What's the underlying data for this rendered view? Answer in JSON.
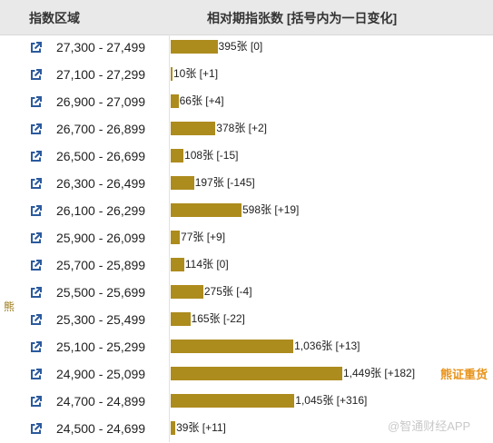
{
  "header": {
    "range_label": "指数区域",
    "bar_label": "相对期指张数 [括号内为一日变化]"
  },
  "side_label": "熊",
  "side_note": "熊证重货",
  "watermark": "@智通财经APP",
  "colors": {
    "bar": "#ad8c1e",
    "header_bg": "#e9e9e9",
    "note": "#e8931a"
  },
  "icon": "external-link-icon",
  "chart_data": {
    "type": "bar",
    "orientation": "horizontal",
    "categories": [
      "27,300 - 27,499",
      "27,100 - 27,299",
      "26,900 - 27,099",
      "26,700 - 26,899",
      "26,500 - 26,699",
      "26,300 - 26,499",
      "26,100 - 26,299",
      "25,900 - 26,099",
      "25,700 - 25,899",
      "25,500 - 25,699",
      "25,300 - 25,499",
      "25,100 - 25,299",
      "24,900 - 25,099",
      "24,700 - 24,899",
      "24,500 - 24,699"
    ],
    "values": [
      395,
      10,
      66,
      378,
      108,
      197,
      598,
      77,
      114,
      275,
      165,
      1036,
      1449,
      1045,
      39
    ],
    "labels": [
      "395张 [0]",
      "10张 [+1]",
      "66张 [+4]",
      "378张 [+2]",
      "108张 [-15]",
      "197张 [-145]",
      "598张 [+19]",
      "77张 [+9]",
      "114张 [0]",
      "275张 [-4]",
      "165张 [-22]",
      "1,036张 [+13]",
      "1,449张 [+182]",
      "1,045张 [+316]",
      "39张 [+11]"
    ],
    "changes": [
      0,
      1,
      4,
      2,
      -15,
      -145,
      19,
      9,
      0,
      -4,
      -22,
      13,
      182,
      316,
      11
    ],
    "xlim": [
      0,
      1449
    ]
  }
}
